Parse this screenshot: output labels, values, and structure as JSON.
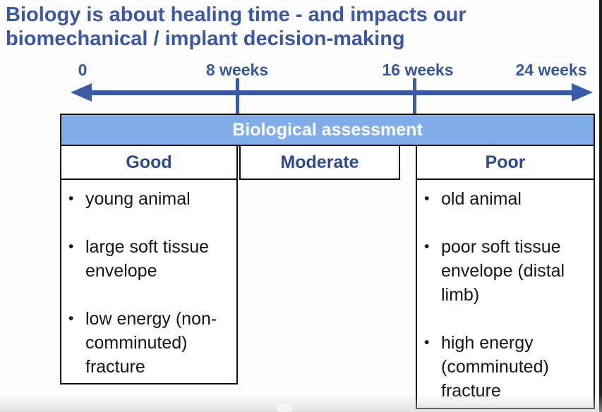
{
  "title": {
    "text": "Biology is about healing time - and impacts our biomechanical / implant decision-making"
  },
  "timeline": {
    "labels": [
      "0",
      "8 weeks",
      "16 weeks",
      "24 weeks"
    ]
  },
  "table": {
    "header_label": "Biological assessment",
    "bullet_glyph": "•",
    "columns": [
      {
        "label": "Good",
        "items": [
          "young animal",
          "large soft tissue\nenvelope",
          "low energy (non-\ncomminuted)\nfracture"
        ]
      },
      {
        "label": "Moderate",
        "items": []
      },
      {
        "label": "Poor",
        "items": [
          "old animal",
          "poor soft tissue\nenvelope (distal\nlimb)",
          "high energy\n(comminuted)\nfracture"
        ]
      }
    ]
  },
  "colors": {
    "title_blue": "#3a58a6",
    "timeline_blue": "#36569e",
    "arrow_blue": "#3a5ba8",
    "band_fill": "#81ade9",
    "band_text": "#ffffff",
    "column_label_blue": "#2d4a91",
    "body_text": "#151515",
    "line_black": "#0f0f0f",
    "edge_bar": "#1e1e1e"
  }
}
